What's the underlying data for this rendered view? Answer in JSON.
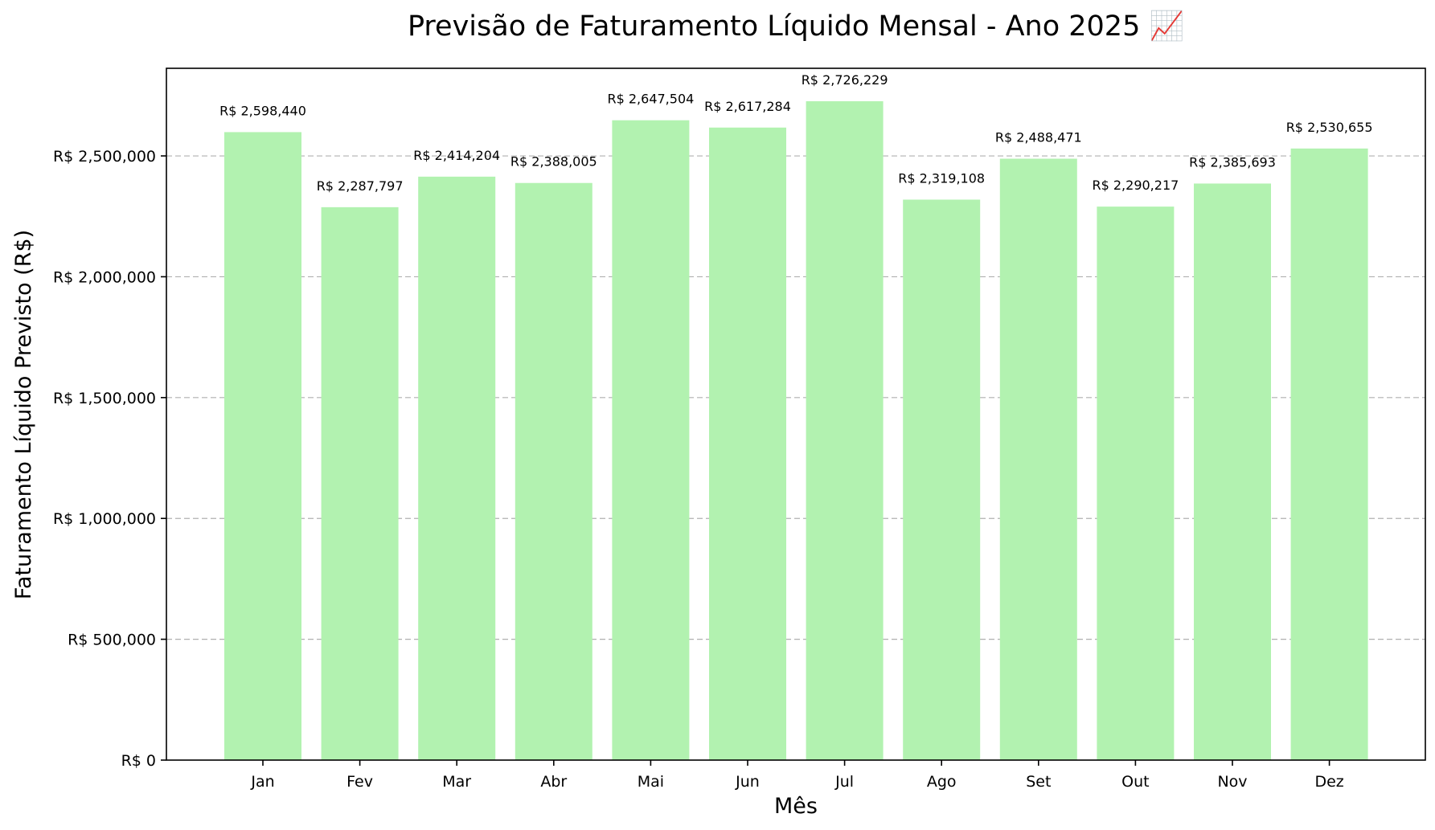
{
  "chart_data": {
    "type": "bar",
    "title": "Previsão de Faturamento Líquido Mensal - Ano 2025 📈",
    "xlabel": "Mês",
    "ylabel": "Faturamento Líquido Previsto (R$)",
    "categories": [
      "Jan",
      "Fev",
      "Mar",
      "Abr",
      "Mai",
      "Jun",
      "Jul",
      "Ago",
      "Set",
      "Out",
      "Nov",
      "Dez"
    ],
    "values": [
      2598440,
      2287797,
      2414204,
      2388005,
      2647504,
      2617284,
      2726229,
      2319108,
      2488471,
      2290217,
      2385693,
      2530655
    ],
    "data_labels": [
      "R$ 2,598,440",
      "R$ 2,287,797",
      "R$ 2,414,204",
      "R$ 2,388,005",
      "R$ 2,647,504",
      "R$ 2,617,284",
      "R$ 2,726,229",
      "R$ 2,319,108",
      "R$ 2,488,471",
      "R$ 2,290,217",
      "R$ 2,385,693",
      "R$ 2,530,655"
    ],
    "yticks": [
      0,
      500000,
      1000000,
      1500000,
      2000000,
      2500000
    ],
    "ytick_labels": [
      "R$ 0",
      "R$ 500,000",
      "R$ 1,000,000",
      "R$ 1,500,000",
      "R$ 2,000,000",
      "R$ 2,500,000"
    ],
    "ylim": [
      0,
      2862540
    ],
    "grid": "y-dashed",
    "bar_color": "#b2f2b0",
    "grid_color": "#b0b0b0"
  }
}
